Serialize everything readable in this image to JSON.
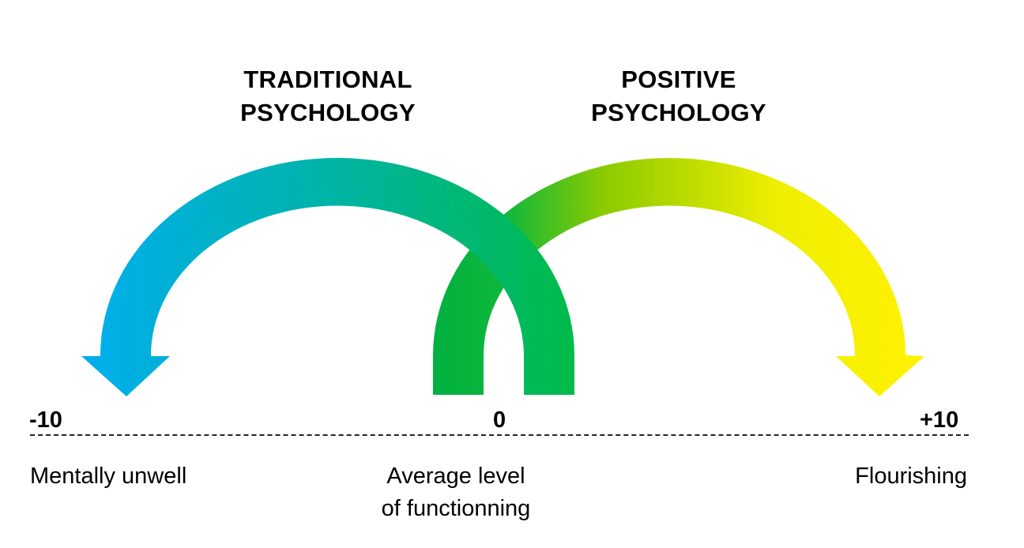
{
  "titles": {
    "traditional": [
      "TRADITIONAL",
      "PSYCHOLOGY"
    ],
    "positive": [
      "POSITIVE",
      "PSYCHOLOGY"
    ]
  },
  "scale": {
    "min": "-10",
    "mid": "0",
    "max": "+10"
  },
  "labels": {
    "min": "Mentally unwell",
    "mid": [
      "Average level",
      "of functionning"
    ],
    "max": "Flourishing"
  },
  "colors": {
    "traditional_start": "#00AEEF",
    "traditional_end": "#00BB48",
    "positive_start": "#00B140",
    "positive_end": "#FFF200"
  },
  "arrows": {
    "traditional": {
      "from": "0",
      "to": "-10"
    },
    "positive": {
      "from": "0",
      "to": "+10"
    }
  }
}
